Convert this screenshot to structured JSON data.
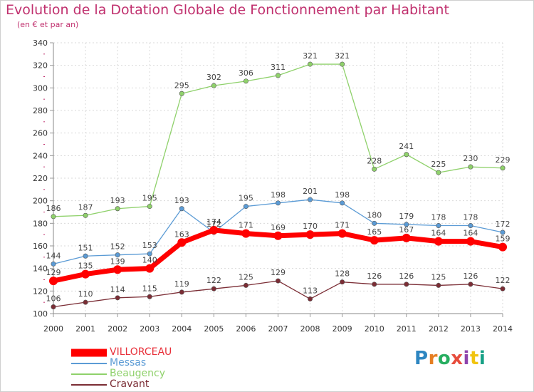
{
  "header": {
    "title": "Evolution de la Dotation Globale de Fonctionnement par Habitant",
    "subtitle": "(en € et par an)"
  },
  "logo": {
    "text": "Proxiti",
    "colors": [
      "#2e86c1",
      "#e67e22",
      "#27ae60",
      "#e74c3c",
      "#8e44ad",
      "#f1c40f",
      "#16a085"
    ]
  },
  "chart_data": {
    "type": "line",
    "x": [
      "2000",
      "2001",
      "2002",
      "2003",
      "2004",
      "2005",
      "2006",
      "2007",
      "2008",
      "2009",
      "2010",
      "2011",
      "2012",
      "2013",
      "2014"
    ],
    "ylim": [
      100,
      340
    ],
    "yticks": [
      100,
      120,
      140,
      160,
      180,
      200,
      220,
      240,
      260,
      280,
      300,
      320,
      340
    ],
    "grid": true,
    "legend_position": "bottom-left",
    "series": [
      {
        "name": "Cravant",
        "color": "#7b2d35",
        "values": [
          106,
          110,
          114,
          115,
          119,
          122,
          125,
          129,
          113,
          128,
          126,
          126,
          125,
          126,
          122
        ]
      },
      {
        "name": "Beaugency",
        "color": "#8fd16b",
        "values": [
          186,
          187,
          193,
          195,
          295,
          302,
          306,
          311,
          321,
          321,
          228,
          241,
          225,
          230,
          229
        ]
      },
      {
        "name": "Messas",
        "color": "#5b9bd5",
        "values": [
          144,
          151,
          152,
          153,
          193,
          172,
          195,
          198,
          201,
          198,
          180,
          179,
          178,
          178,
          172
        ]
      },
      {
        "name": "VILLORCEAU",
        "color": "#ff0000",
        "values": [
          129,
          135,
          139,
          140,
          163,
          174,
          171,
          169,
          170,
          171,
          165,
          167,
          164,
          164,
          159
        ]
      }
    ],
    "legend_order": [
      "VILLORCEAU",
      "Messas",
      "Beaugency",
      "Cravant"
    ]
  }
}
